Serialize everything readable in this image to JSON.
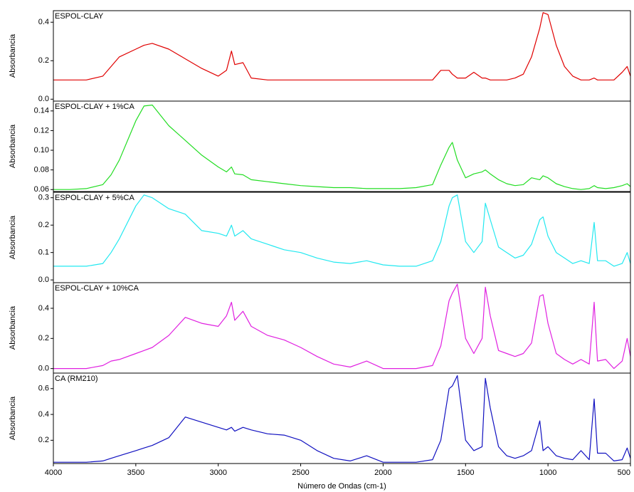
{
  "chart_data": [
    {
      "type": "line",
      "title": "ESPOL-CLAY",
      "ylabel": "Absorbancia",
      "color": "#e00000",
      "x": [
        4000,
        3900,
        3800,
        3700,
        3650,
        3600,
        3500,
        3450,
        3400,
        3300,
        3200,
        3100,
        3000,
        2950,
        2920,
        2900,
        2850,
        2800,
        2700,
        2600,
        2500,
        2400,
        2300,
        2200,
        2100,
        2000,
        1900,
        1800,
        1700,
        1650,
        1600,
        1580,
        1550,
        1500,
        1450,
        1400,
        1380,
        1350,
        1300,
        1250,
        1200,
        1150,
        1100,
        1050,
        1030,
        1000,
        950,
        900,
        850,
        800,
        750,
        720,
        700,
        650,
        600,
        550,
        520,
        500
      ],
      "values": [
        0.1,
        0.1,
        0.1,
        0.12,
        0.17,
        0.22,
        0.26,
        0.28,
        0.29,
        0.26,
        0.21,
        0.16,
        0.12,
        0.15,
        0.25,
        0.18,
        0.19,
        0.11,
        0.1,
        0.1,
        0.1,
        0.1,
        0.1,
        0.1,
        0.1,
        0.1,
        0.1,
        0.1,
        0.1,
        0.15,
        0.15,
        0.13,
        0.11,
        0.11,
        0.14,
        0.11,
        0.11,
        0.1,
        0.1,
        0.1,
        0.11,
        0.13,
        0.22,
        0.37,
        0.45,
        0.44,
        0.28,
        0.17,
        0.12,
        0.1,
        0.1,
        0.11,
        0.1,
        0.1,
        0.1,
        0.14,
        0.17,
        0.12
      ],
      "xlim": [
        4000,
        500
      ],
      "ylim": [
        -0.01,
        0.46
      ],
      "yticks": [
        {
          "value": 0,
          "label": "0.0"
        },
        0.2,
        0.4
      ]
    },
    {
      "type": "line",
      "title": "ESPOL-CLAY + 1%CA",
      "ylabel": "Absorbancia",
      "color": "#22dd22",
      "x": [
        4000,
        3900,
        3800,
        3700,
        3650,
        3600,
        3500,
        3450,
        3400,
        3300,
        3200,
        3100,
        3000,
        2950,
        2920,
        2900,
        2850,
        2800,
        2700,
        2600,
        2500,
        2400,
        2300,
        2200,
        2100,
        2000,
        1900,
        1800,
        1700,
        1650,
        1600,
        1580,
        1550,
        1500,
        1450,
        1400,
        1380,
        1350,
        1300,
        1250,
        1200,
        1150,
        1100,
        1050,
        1030,
        1000,
        950,
        900,
        850,
        800,
        750,
        720,
        700,
        650,
        600,
        550,
        520,
        500
      ],
      "values": [
        0.06,
        0.06,
        0.061,
        0.065,
        0.075,
        0.09,
        0.13,
        0.145,
        0.146,
        0.125,
        0.11,
        0.095,
        0.083,
        0.078,
        0.083,
        0.076,
        0.075,
        0.07,
        0.068,
        0.066,
        0.064,
        0.063,
        0.062,
        0.062,
        0.061,
        0.061,
        0.061,
        0.062,
        0.065,
        0.085,
        0.103,
        0.108,
        0.09,
        0.072,
        0.076,
        0.078,
        0.08,
        0.076,
        0.07,
        0.066,
        0.064,
        0.065,
        0.072,
        0.07,
        0.074,
        0.072,
        0.066,
        0.063,
        0.061,
        0.06,
        0.061,
        0.064,
        0.062,
        0.061,
        0.062,
        0.064,
        0.066,
        0.063
      ],
      "xlim": [
        4000,
        500
      ],
      "ylim": [
        0.058,
        0.15
      ],
      "yticks": [
        0.06,
        0.08,
        {
          "value": 0.1,
          "label": "0.10"
        },
        0.12,
        0.14
      ]
    },
    {
      "type": "line",
      "title": "ESPOL-CLAY + 5%CA",
      "ylabel": "Absorbancia",
      "color": "#22e8f0",
      "x": [
        4000,
        3900,
        3800,
        3700,
        3650,
        3600,
        3500,
        3450,
        3400,
        3300,
        3200,
        3100,
        3000,
        2950,
        2920,
        2900,
        2850,
        2800,
        2700,
        2600,
        2500,
        2400,
        2300,
        2200,
        2100,
        2000,
        1900,
        1800,
        1700,
        1650,
        1600,
        1580,
        1550,
        1500,
        1450,
        1400,
        1380,
        1350,
        1300,
        1250,
        1200,
        1150,
        1100,
        1050,
        1030,
        1000,
        950,
        900,
        850,
        800,
        750,
        720,
        700,
        650,
        600,
        550,
        520,
        500
      ],
      "values": [
        0.05,
        0.05,
        0.05,
        0.06,
        0.1,
        0.15,
        0.27,
        0.31,
        0.3,
        0.26,
        0.24,
        0.18,
        0.17,
        0.16,
        0.2,
        0.16,
        0.18,
        0.15,
        0.13,
        0.11,
        0.1,
        0.08,
        0.065,
        0.06,
        0.07,
        0.055,
        0.05,
        0.05,
        0.07,
        0.14,
        0.27,
        0.3,
        0.31,
        0.14,
        0.1,
        0.14,
        0.28,
        0.22,
        0.12,
        0.1,
        0.08,
        0.09,
        0.13,
        0.22,
        0.23,
        0.16,
        0.1,
        0.08,
        0.06,
        0.07,
        0.06,
        0.21,
        0.07,
        0.07,
        0.05,
        0.06,
        0.1,
        0.06
      ],
      "xlim": [
        4000,
        500
      ],
      "ylim": [
        -0.01,
        0.32
      ],
      "yticks": [
        {
          "value": 0,
          "label": "0.0"
        },
        0.1,
        0.2,
        0.3
      ]
    },
    {
      "type": "line",
      "title": "ESPOL-CLAY + 10%CA",
      "ylabel": "Absorbancia",
      "color": "#e020e0",
      "x": [
        4000,
        3900,
        3800,
        3700,
        3650,
        3600,
        3500,
        3450,
        3400,
        3300,
        3200,
        3100,
        3000,
        2950,
        2920,
        2900,
        2850,
        2800,
        2700,
        2600,
        2500,
        2400,
        2300,
        2200,
        2100,
        2000,
        1900,
        1800,
        1700,
        1650,
        1600,
        1580,
        1550,
        1500,
        1450,
        1400,
        1380,
        1350,
        1300,
        1250,
        1200,
        1150,
        1100,
        1050,
        1030,
        1000,
        950,
        900,
        850,
        800,
        750,
        720,
        700,
        650,
        600,
        550,
        520,
        500
      ],
      "values": [
        0,
        0,
        0,
        0.02,
        0.05,
        0.06,
        0.1,
        0.12,
        0.14,
        0.22,
        0.34,
        0.3,
        0.28,
        0.35,
        0.44,
        0.32,
        0.38,
        0.28,
        0.22,
        0.19,
        0.14,
        0.08,
        0.03,
        0.01,
        0.05,
        0,
        0,
        0,
        0.02,
        0.15,
        0.45,
        0.5,
        0.56,
        0.2,
        0.1,
        0.2,
        0.54,
        0.35,
        0.12,
        0.1,
        0.08,
        0.1,
        0.17,
        0.48,
        0.49,
        0.3,
        0.1,
        0.06,
        0.03,
        0.06,
        0.03,
        0.44,
        0.05,
        0.06,
        0,
        0.05,
        0.2,
        0.08
      ],
      "xlim": [
        4000,
        500
      ],
      "ylim": [
        -0.03,
        0.57
      ],
      "yticks": [
        {
          "value": 0,
          "label": "0.0"
        },
        0.2,
        0.4
      ]
    },
    {
      "type": "line",
      "title": "CA (RM210)",
      "ylabel": "Absorbancia",
      "xlabel": "Número de Ondas (cm-1)",
      "color": "#1010c0",
      "x": [
        4000,
        3900,
        3800,
        3700,
        3650,
        3600,
        3500,
        3450,
        3400,
        3300,
        3200,
        3100,
        3000,
        2950,
        2920,
        2900,
        2850,
        2800,
        2700,
        2600,
        2500,
        2400,
        2300,
        2200,
        2100,
        2000,
        1900,
        1800,
        1700,
        1650,
        1600,
        1580,
        1550,
        1500,
        1450,
        1400,
        1380,
        1350,
        1300,
        1250,
        1200,
        1150,
        1100,
        1050,
        1030,
        1000,
        950,
        900,
        850,
        800,
        750,
        720,
        700,
        650,
        600,
        550,
        520,
        500
      ],
      "values": [
        0.03,
        0.03,
        0.03,
        0.04,
        0.06,
        0.08,
        0.12,
        0.14,
        0.16,
        0.22,
        0.38,
        0.34,
        0.3,
        0.28,
        0.3,
        0.27,
        0.3,
        0.28,
        0.25,
        0.24,
        0.2,
        0.12,
        0.06,
        0.04,
        0.08,
        0.03,
        0.03,
        0.03,
        0.05,
        0.2,
        0.6,
        0.62,
        0.7,
        0.2,
        0.12,
        0.15,
        0.68,
        0.45,
        0.15,
        0.08,
        0.06,
        0.08,
        0.12,
        0.35,
        0.12,
        0.15,
        0.08,
        0.06,
        0.05,
        0.12,
        0.05,
        0.52,
        0.1,
        0.1,
        0.04,
        0.05,
        0.14,
        0.06
      ],
      "xlim": [
        4000,
        500
      ],
      "ylim": [
        0.02,
        0.72
      ],
      "yticks": [
        0.2,
        0.4,
        0.6
      ],
      "xticks": [
        4000,
        3500,
        3000,
        2500,
        2000,
        1500,
        1000,
        500
      ]
    }
  ]
}
